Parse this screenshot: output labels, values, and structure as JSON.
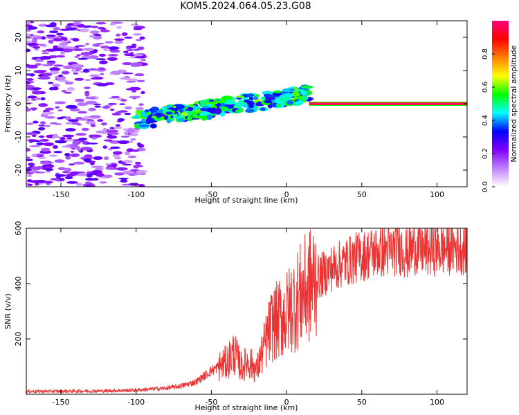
{
  "page": {
    "title": "KOM5.2024.064.05.23.G08"
  },
  "chart_data": [
    {
      "type": "heatmap",
      "title": "KOM5.2024.064.05.23.G08",
      "xlabel": "Height of straight line (km)",
      "ylabel": "Frequency (Hz)",
      "xlim": [
        -173,
        120
      ],
      "ylim": [
        -25,
        25
      ],
      "xticks": [
        -150,
        -100,
        -50,
        0,
        50,
        100
      ],
      "yticks": [
        -20,
        -10,
        0,
        10,
        20
      ],
      "grid": false,
      "colorbar": {
        "label": "Normalized spectral amplitude",
        "range": [
          0,
          1
        ],
        "ticks": [
          "0.0",
          "0.2",
          "0.4",
          "0.6",
          "0.8"
        ],
        "colormap": [
          "#ffffff",
          "#c080ff",
          "#8000ff",
          "#0000ff",
          "#00ffff",
          "#00ff00",
          "#ffff00",
          "#ff8000",
          "#ff0000",
          "#ff0080"
        ]
      },
      "features": [
        {
          "name": "noise",
          "x": [
            -173,
            -95
          ],
          "y": [
            -25,
            25
          ],
          "amplitude": 0.15
        },
        {
          "name": "transition",
          "x": [
            -100,
            15
          ],
          "y": [
            -10,
            5
          ],
          "amplitude": 0.35
        },
        {
          "name": "signal",
          "x": [
            15,
            120
          ],
          "y": [
            0,
            0
          ],
          "amplitude": 1.0
        }
      ]
    },
    {
      "type": "line",
      "xlabel": "Height of straight line (km)",
      "ylabel": "SNR (v/v)",
      "xlim": [
        -173,
        120
      ],
      "ylim": [
        0,
        600
      ],
      "xticks": [
        -150,
        -100,
        -50,
        0,
        50,
        100
      ],
      "yticks": [
        200,
        400,
        600
      ],
      "grid": false,
      "series_color": "#ee3333",
      "envelope": [
        {
          "x": -173,
          "y": 10
        },
        {
          "x": -150,
          "y": 11
        },
        {
          "x": -120,
          "y": 12
        },
        {
          "x": -100,
          "y": 15
        },
        {
          "x": -80,
          "y": 22
        },
        {
          "x": -70,
          "y": 30
        },
        {
          "x": -60,
          "y": 45
        },
        {
          "x": -50,
          "y": 85
        },
        {
          "x": -40,
          "y": 115
        },
        {
          "x": -35,
          "y": 150
        },
        {
          "x": -30,
          "y": 100
        },
        {
          "x": -25,
          "y": 120
        },
        {
          "x": -20,
          "y": 85
        },
        {
          "x": -15,
          "y": 170
        },
        {
          "x": -10,
          "y": 250
        },
        {
          "x": -5,
          "y": 270
        },
        {
          "x": 0,
          "y": 290
        },
        {
          "x": 5,
          "y": 330
        },
        {
          "x": 10,
          "y": 360
        },
        {
          "x": 15,
          "y": 390
        },
        {
          "x": 20,
          "y": 420
        },
        {
          "x": 30,
          "y": 455
        },
        {
          "x": 40,
          "y": 480
        },
        {
          "x": 50,
          "y": 500
        },
        {
          "x": 60,
          "y": 515
        },
        {
          "x": 70,
          "y": 520
        },
        {
          "x": 75,
          "y": 530
        },
        {
          "x": 80,
          "y": 510
        },
        {
          "x": 85,
          "y": 530
        },
        {
          "x": 90,
          "y": 520
        },
        {
          "x": 100,
          "y": 525
        },
        {
          "x": 110,
          "y": 530
        },
        {
          "x": 120,
          "y": 530
        }
      ]
    }
  ]
}
